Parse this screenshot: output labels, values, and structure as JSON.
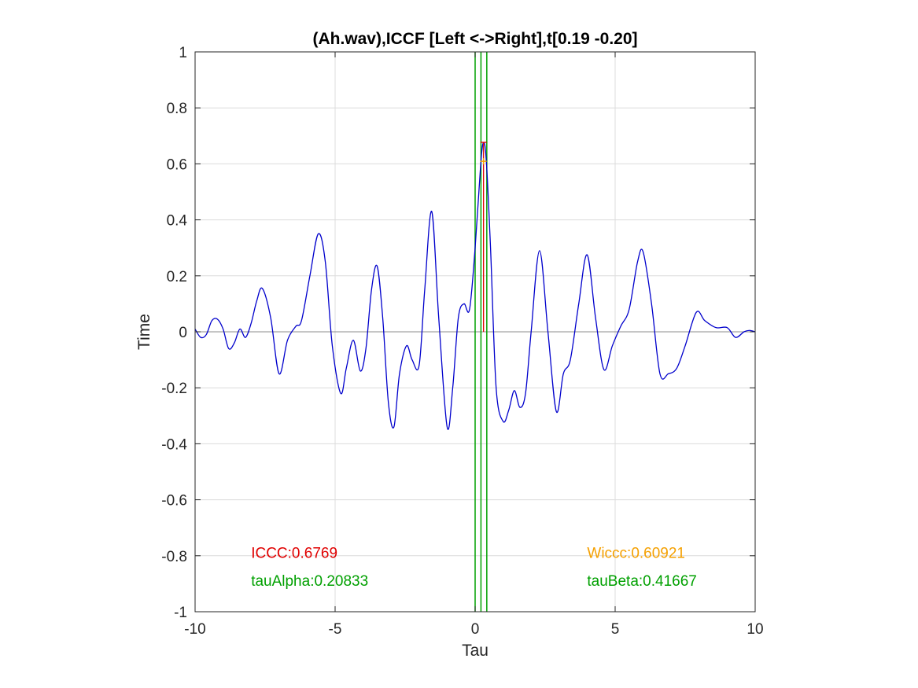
{
  "chart_data": {
    "type": "line",
    "title": "(Ah.wav),ICCF [Left <->Right],t[0.19 -0.20]",
    "xlabel": "Tau",
    "ylabel": "Time",
    "xlim": [
      -10,
      10
    ],
    "ylim": [
      -1,
      1
    ],
    "xticks": [
      "-10",
      "-5",
      "0",
      "5",
      "10"
    ],
    "xtick_values": [
      -10,
      -5,
      0,
      5,
      10
    ],
    "yticks": [
      "-1",
      "-0.8",
      "-0.6",
      "-0.4",
      "-0.2",
      "0",
      "0.2",
      "0.4",
      "0.6",
      "0.8",
      "1"
    ],
    "ytick_values": [
      -1,
      -0.8,
      -0.6,
      -0.4,
      -0.2,
      0,
      0.2,
      0.4,
      0.6,
      0.8,
      1
    ],
    "grid": true,
    "series": [
      {
        "color": "#0000cc",
        "x": [
          -10,
          -9.8,
          -9.6,
          -9.4,
          -9.2,
          -9.0,
          -8.8,
          -8.6,
          -8.4,
          -8.2,
          -8.0,
          -7.8,
          -7.6,
          -7.3,
          -7.0,
          -6.7,
          -6.4,
          -6.2,
          -5.9,
          -5.6,
          -5.35,
          -5.1,
          -4.8,
          -4.6,
          -4.35,
          -4.1,
          -3.9,
          -3.7,
          -3.5,
          -3.3,
          -3.1,
          -2.9,
          -2.7,
          -2.45,
          -2.25,
          -2.0,
          -1.8,
          -1.55,
          -1.3,
          -1.0,
          -0.8,
          -0.6,
          -0.4,
          -0.2,
          0.0,
          0.2,
          0.3,
          0.4,
          0.55,
          0.75,
          1.0,
          1.2,
          1.4,
          1.6,
          1.8,
          2.0,
          2.3,
          2.6,
          2.9,
          3.15,
          3.4,
          3.7,
          4.0,
          4.3,
          4.6,
          4.9,
          5.2,
          5.5,
          5.8,
          6.0,
          6.3,
          6.6,
          6.9,
          7.2,
          7.5,
          7.9,
          8.2,
          8.6,
          9.0,
          9.3,
          9.6,
          9.8,
          10
        ],
        "y": [
          0.01,
          -0.02,
          -0.01,
          0.04,
          0.045,
          0.01,
          -0.06,
          -0.04,
          0.01,
          -0.02,
          0.03,
          0.11,
          0.155,
          0.05,
          -0.15,
          -0.03,
          0.02,
          0.04,
          0.2,
          0.35,
          0.25,
          -0.05,
          -0.22,
          -0.13,
          -0.03,
          -0.14,
          -0.06,
          0.15,
          0.235,
          0.05,
          -0.25,
          -0.34,
          -0.15,
          -0.05,
          -0.1,
          -0.12,
          0.15,
          0.43,
          0.05,
          -0.34,
          -0.2,
          0.05,
          0.1,
          0.08,
          0.3,
          0.6,
          0.676,
          0.61,
          0.3,
          -0.2,
          -0.32,
          -0.28,
          -0.21,
          -0.27,
          -0.22,
          0.0,
          0.29,
          0.0,
          -0.285,
          -0.15,
          -0.1,
          0.1,
          0.275,
          0.05,
          -0.135,
          -0.05,
          0.02,
          0.08,
          0.25,
          0.285,
          0.1,
          -0.15,
          -0.15,
          -0.13,
          -0.05,
          0.07,
          0.04,
          0.015,
          0.015,
          -0.02,
          0.0,
          0.005,
          0.0
        ]
      }
    ],
    "vlines": [
      {
        "x": 0.0,
        "color": "#00a000"
      },
      {
        "x": 0.2083,
        "color": "#00a000"
      },
      {
        "x": 0.4167,
        "color": "#00a000"
      }
    ],
    "markers": [
      {
        "x": 0.3,
        "y_from": 0,
        "y_to": 0.6769,
        "color": "#e00000"
      },
      {
        "x": 0.3,
        "y": 0.6092,
        "color": "#f5a000"
      }
    ],
    "annotations": [
      {
        "text": "ICCC:0.6769",
        "x": -8.0,
        "y": -0.807,
        "color": "#e00000"
      },
      {
        "text": "tauAlpha:0.20833",
        "x": -8.0,
        "y": -0.907,
        "color": "#00a000"
      },
      {
        "text": "Wiccc:0.60921",
        "x": 4.0,
        "y": -0.807,
        "color": "#f5a000"
      },
      {
        "text": "tauBeta:0.41667",
        "x": 4.0,
        "y": -0.907,
        "color": "#00a000"
      }
    ]
  }
}
